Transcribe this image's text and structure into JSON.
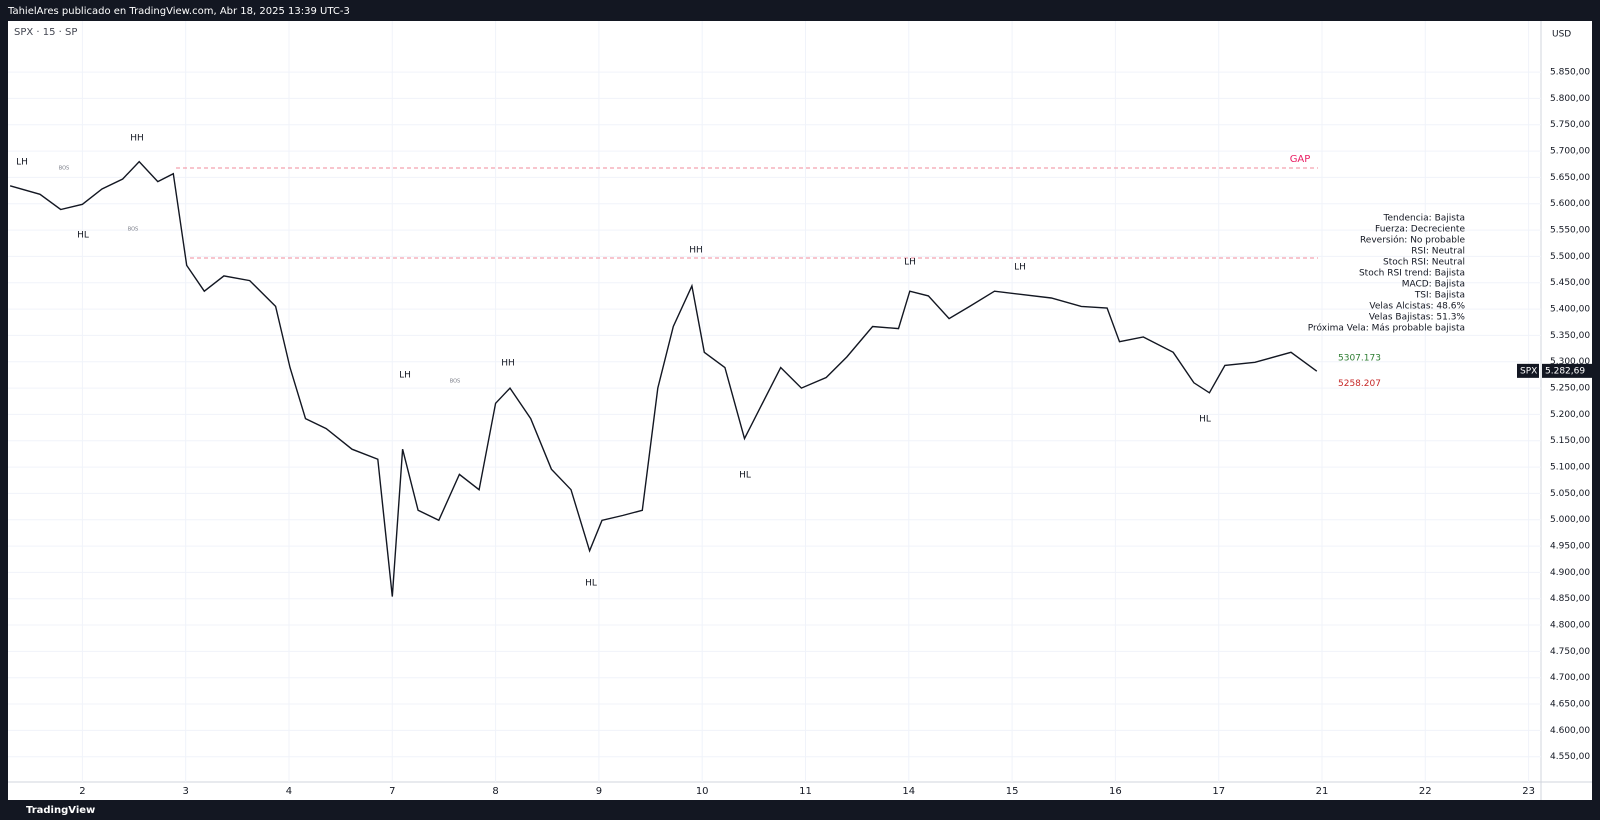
{
  "header": "TahielAres publicado en TradingView.com, Abr 18, 2025 13:39 UTC-3",
  "footer": "TradingView",
  "chart_data": {
    "type": "line",
    "symbol_legend": "SPX · 15 · SP",
    "currency": "USD",
    "color": "#131722",
    "x": [
      0.3,
      0.59,
      0.79,
      1.0,
      1.19,
      1.39,
      1.55,
      1.73,
      1.88,
      2.01,
      2.18,
      2.37,
      2.62,
      2.87,
      3.01,
      3.16,
      3.36,
      3.61,
      3.86,
      4.0,
      4.1,
      4.25,
      4.45,
      4.65,
      4.84,
      5.0,
      5.14,
      5.34,
      5.54,
      5.73,
      5.91,
      6.03,
      6.23,
      6.42,
      6.57,
      6.72,
      6.9,
      7.02,
      7.22,
      7.41,
      7.56,
      7.76,
      7.96,
      8.2,
      8.4,
      8.65,
      8.9,
      9.01,
      9.19,
      9.39,
      9.59,
      9.83,
      10.08,
      10.38,
      10.67,
      10.92,
      11.04,
      11.27,
      11.56,
      11.76,
      11.91,
      12.06,
      12.35,
      12.7,
      12.95
    ],
    "values": [
      5634,
      5618,
      5589,
      5599,
      5628,
      5647,
      5680,
      5642,
      5657,
      5483,
      5434,
      5463,
      5454,
      5405,
      5289,
      5192,
      5173,
      5134,
      5115,
      4854,
      5134,
      5018,
      4999,
      5086,
      5057,
      5221,
      5250,
      5192,
      5096,
      5057,
      4941,
      4999,
      5008,
      5018,
      5250,
      5367,
      5444,
      5318,
      5289,
      5154,
      5212,
      5289,
      5250,
      5270,
      5309,
      5367,
      5363,
      5434,
      5425,
      5382,
      5405,
      5434,
      5428,
      5421,
      5405,
      5402,
      5338,
      5347,
      5318,
      5260,
      5241,
      5293,
      5299,
      5318,
      5282
    ],
    "xlim": [
      0.28,
      15.12
    ],
    "xticks": [
      {
        "value": 1,
        "label": "2"
      },
      {
        "value": 2,
        "label": "3"
      },
      {
        "value": 3,
        "label": "4"
      },
      {
        "value": 4,
        "label": "7"
      },
      {
        "value": 5,
        "label": "8"
      },
      {
        "value": 6,
        "label": "9"
      },
      {
        "value": 7,
        "label": "10"
      },
      {
        "value": 8,
        "label": "11"
      },
      {
        "value": 9,
        "label": "14"
      },
      {
        "value": 10,
        "label": "15"
      },
      {
        "value": 11,
        "label": "16"
      },
      {
        "value": 12,
        "label": "17"
      },
      {
        "value": 13,
        "label": "21"
      },
      {
        "value": 14,
        "label": "22"
      },
      {
        "value": 15,
        "label": "23"
      }
    ],
    "ylim": [
      4502,
      5947
    ],
    "yticks": [
      {
        "value": 4550,
        "label": "4.550,00"
      },
      {
        "value": 4600,
        "label": "4.600,00"
      },
      {
        "value": 4650,
        "label": "4.650,00"
      },
      {
        "value": 4700,
        "label": "4.700,00"
      },
      {
        "value": 4750,
        "label": "4.750,00"
      },
      {
        "value": 4800,
        "label": "4.800,00"
      },
      {
        "value": 4850,
        "label": "4.850,00"
      },
      {
        "value": 4900,
        "label": "4.900,00"
      },
      {
        "value": 4950,
        "label": "4.950,00"
      },
      {
        "value": 5000,
        "label": "5.000,00"
      },
      {
        "value": 5050,
        "label": "5.050,00"
      },
      {
        "value": 5100,
        "label": "5.100,00"
      },
      {
        "value": 5150,
        "label": "5.150,00"
      },
      {
        "value": 5200,
        "label": "5.200,00"
      },
      {
        "value": 5250,
        "label": "5.250,00"
      },
      {
        "value": 5300,
        "label": "5.300,00"
      },
      {
        "value": 5350,
        "label": "5.350,00"
      },
      {
        "value": 5400,
        "label": "5.400,00"
      },
      {
        "value": 5450,
        "label": "5.450,00"
      },
      {
        "value": 5500,
        "label": "5.500,00"
      },
      {
        "value": 5550,
        "label": "5.550,00"
      },
      {
        "value": 5600,
        "label": "5.600,00"
      },
      {
        "value": 5650,
        "label": "5.650,00"
      },
      {
        "value": 5700,
        "label": "5.700,00"
      },
      {
        "value": 5750,
        "label": "5.750,00"
      },
      {
        "value": 5800,
        "label": "5.800,00"
      },
      {
        "value": 5850,
        "label": "5.850,00"
      }
    ],
    "grid": true,
    "last_price": {
      "name": "SPX",
      "value": 5282.69,
      "label": "5.282,69"
    },
    "levels": [
      {
        "value": 5307.173,
        "color": "#2e7d32"
      },
      {
        "value": 5258.207,
        "color": "#c62828"
      }
    ],
    "annotations": [
      "LH",
      "HH",
      "HL",
      "BOS",
      "BOS",
      "LH",
      "HH",
      "BOS",
      "HL",
      "HH",
      "HL",
      "LH",
      "LH",
      "HL",
      "GAP"
    ],
    "panel": [
      "Tendencia: Bajista",
      "Fuerza: Decreciente",
      "Reversión: No probable",
      "RSI: Neutral",
      "Stoch RSI: Neutral",
      "Stoch RSI trend: Bajista",
      "MACD: Bajista",
      "TSI: Bajista",
      "Velas Alcistas: 48.6%",
      "Velas Bajistas: 51.3%",
      "Próxima Vela: Más probable bajista"
    ]
  }
}
